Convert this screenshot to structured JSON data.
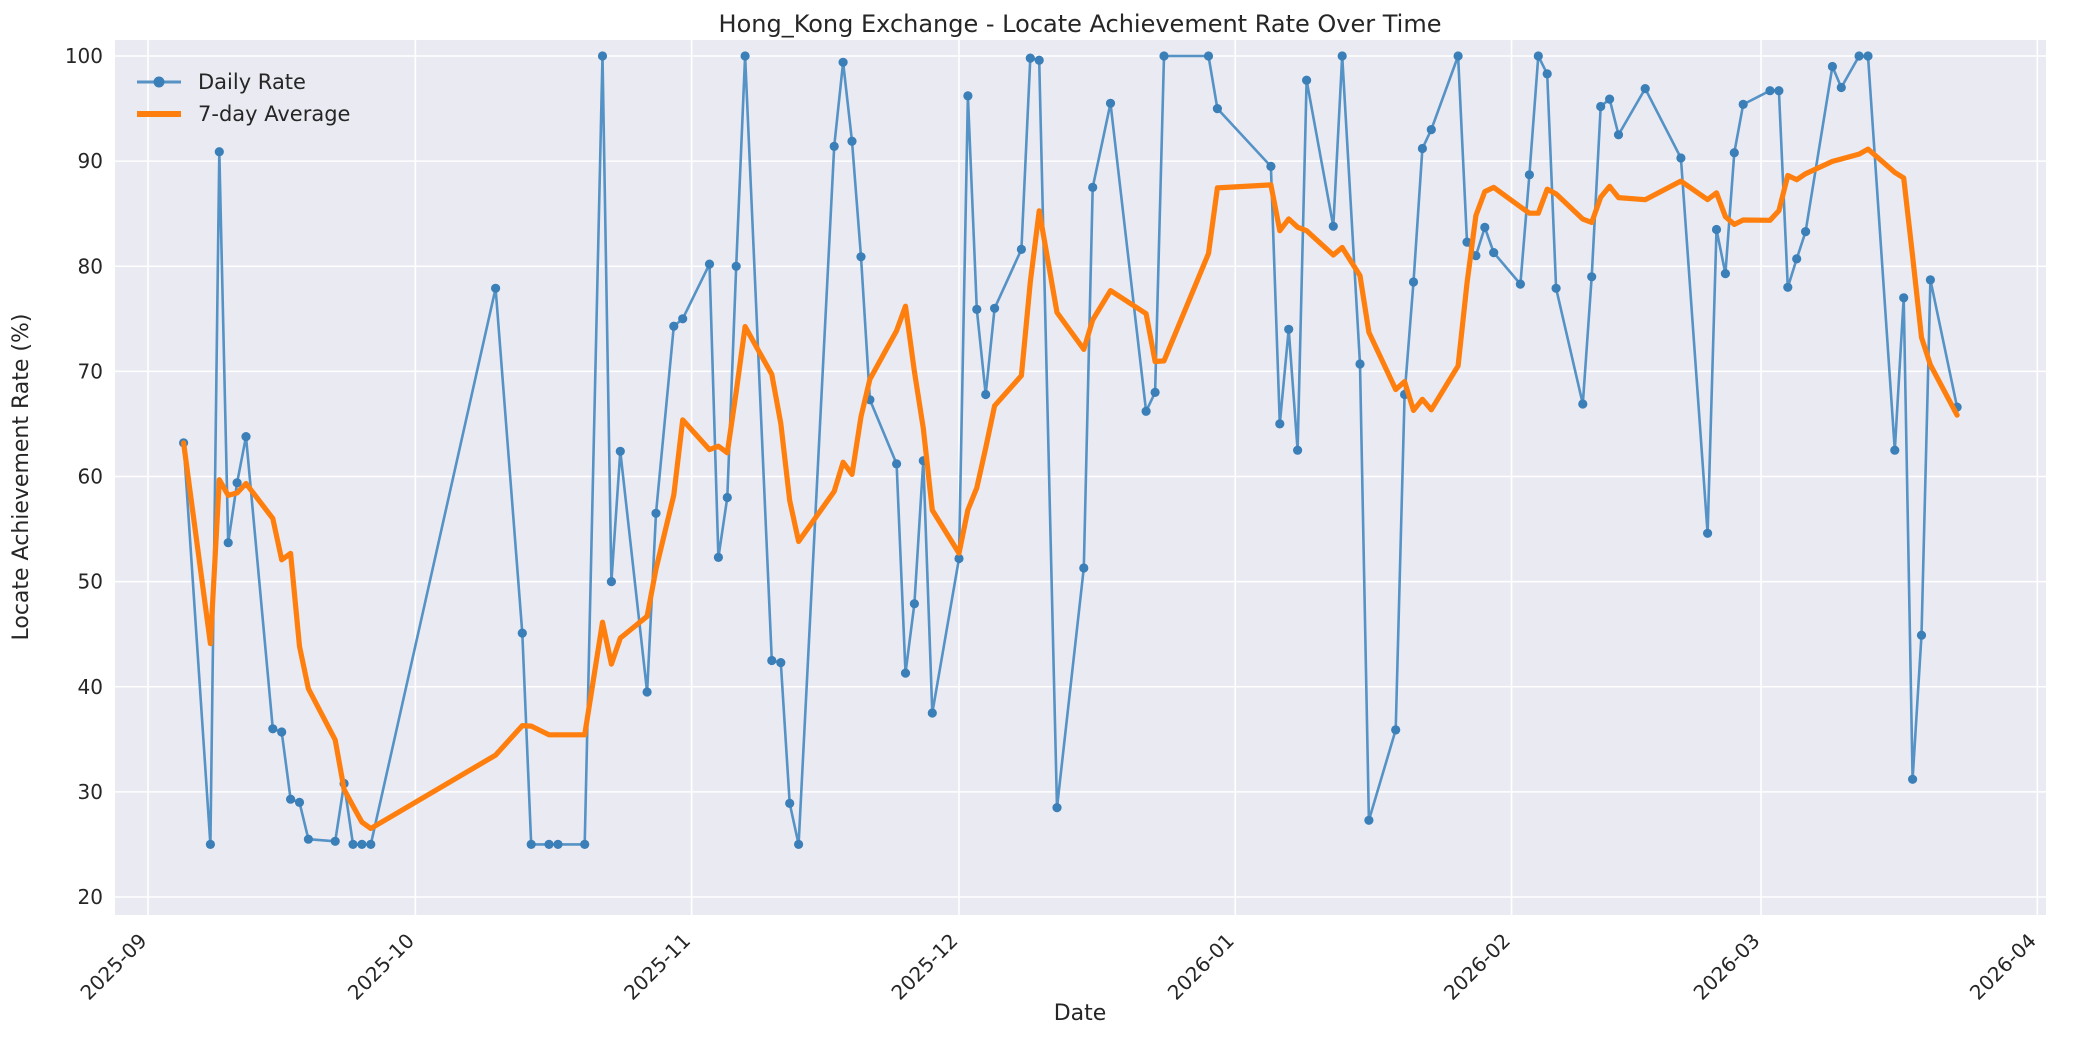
{
  "title": "Hong_Kong Exchange - Locate Achievement Rate Over Time",
  "axes": {
    "xlabel": "Date",
    "ylabel": "Locate Achievement Rate (%)"
  },
  "legend": {
    "daily_label": "Daily Rate",
    "average_label": "7-day Average"
  },
  "colors": {
    "plot_background": "#eaeaf2",
    "grid": "#ffffff",
    "daily_line": "#5592c5",
    "daily_marker": "#3a7fb8",
    "average_line": "#ff7f0e",
    "text": "#262626"
  },
  "chart_data": {
    "type": "line",
    "title": "Hong_Kong Exchange - Locate Achievement Rate Over Time",
    "xlabel": "Date",
    "ylabel": "Locate Achievement Rate (%)",
    "ylim": [
      20,
      100
    ],
    "grid": true,
    "legend_position": "upper-left",
    "y_ticks": [
      20,
      30,
      40,
      50,
      60,
      70,
      80,
      90,
      100
    ],
    "x_ticks": [
      {
        "date": "2025-09-01",
        "label": "2025-09"
      },
      {
        "date": "2025-10-01",
        "label": "2025-10"
      },
      {
        "date": "2025-11-01",
        "label": "2025-11"
      },
      {
        "date": "2025-12-01",
        "label": "2025-12"
      },
      {
        "date": "2026-01-01",
        "label": "2026-01"
      },
      {
        "date": "2026-02-01",
        "label": "2026-02"
      },
      {
        "date": "2026-03-01",
        "label": "2026-03"
      },
      {
        "date": "2026-04-01",
        "label": "2026-04"
      }
    ],
    "series": [
      {
        "name": "Daily Rate",
        "style": "line-with-markers",
        "points": [
          [
            "2025-09-05",
            63.2
          ],
          [
            "2025-09-08",
            25.0
          ],
          [
            "2025-09-09",
            90.9
          ],
          [
            "2025-09-10",
            53.7
          ],
          [
            "2025-09-11",
            59.4
          ],
          [
            "2025-09-12",
            63.8
          ],
          [
            "2025-09-15",
            36.0
          ],
          [
            "2025-09-16",
            35.7
          ],
          [
            "2025-09-17",
            29.3
          ],
          [
            "2025-09-18",
            29.0
          ],
          [
            "2025-09-19",
            25.5
          ],
          [
            "2025-09-22",
            25.3
          ],
          [
            "2025-09-23",
            30.8
          ],
          [
            "2025-09-24",
            25.0
          ],
          [
            "2025-09-25",
            25.0
          ],
          [
            "2025-09-26",
            25.0
          ],
          [
            "2025-10-10",
            77.9
          ],
          [
            "2025-10-13",
            45.1
          ],
          [
            "2025-10-14",
            25.0
          ],
          [
            "2025-10-16",
            25.0
          ],
          [
            "2025-10-17",
            25.0
          ],
          [
            "2025-10-20",
            25.0
          ],
          [
            "2025-10-22",
            100.0
          ],
          [
            "2025-10-23",
            50.0
          ],
          [
            "2025-10-24",
            62.4
          ],
          [
            "2025-10-27",
            39.5
          ],
          [
            "2025-10-28",
            56.5
          ],
          [
            "2025-10-30",
            74.3
          ],
          [
            "2025-10-31",
            75.0
          ],
          [
            "2025-11-03",
            80.2
          ],
          [
            "2025-11-04",
            52.3
          ],
          [
            "2025-11-05",
            58.0
          ],
          [
            "2025-11-06",
            80.0
          ],
          [
            "2025-11-07",
            100.0
          ],
          [
            "2025-11-10",
            42.5
          ],
          [
            "2025-11-11",
            42.3
          ],
          [
            "2025-11-12",
            28.9
          ],
          [
            "2025-11-13",
            25.0
          ],
          [
            "2025-11-17",
            91.4
          ],
          [
            "2025-11-18",
            99.4
          ],
          [
            "2025-11-19",
            91.9
          ],
          [
            "2025-11-20",
            80.9
          ],
          [
            "2025-11-21",
            67.3
          ],
          [
            "2025-11-24",
            61.2
          ],
          [
            "2025-11-25",
            41.3
          ],
          [
            "2025-11-26",
            47.9
          ],
          [
            "2025-11-27",
            61.5
          ],
          [
            "2025-11-28",
            37.5
          ],
          [
            "2025-12-01",
            52.2
          ],
          [
            "2025-12-02",
            96.2
          ],
          [
            "2025-12-03",
            75.9
          ],
          [
            "2025-12-04",
            67.8
          ],
          [
            "2025-12-05",
            76.0
          ],
          [
            "2025-12-08",
            81.6
          ],
          [
            "2025-12-09",
            99.8
          ],
          [
            "2025-12-10",
            99.6
          ],
          [
            "2025-12-12",
            28.5
          ],
          [
            "2025-12-15",
            51.3
          ],
          [
            "2025-12-16",
            87.5
          ],
          [
            "2025-12-18",
            95.5
          ],
          [
            "2025-12-22",
            66.2
          ],
          [
            "2025-12-23",
            68.0
          ],
          [
            "2025-12-24",
            100.0
          ],
          [
            "2025-12-29",
            100.0
          ],
          [
            "2025-12-30",
            95.0
          ],
          [
            "2026-01-05",
            89.5
          ],
          [
            "2026-01-06",
            65.0
          ],
          [
            "2026-01-07",
            74.0
          ],
          [
            "2026-01-08",
            62.5
          ],
          [
            "2026-01-09",
            97.7
          ],
          [
            "2026-01-12",
            83.8
          ],
          [
            "2026-01-13",
            100.0
          ],
          [
            "2026-01-15",
            70.7
          ],
          [
            "2026-01-16",
            27.3
          ],
          [
            "2026-01-19",
            35.9
          ],
          [
            "2026-01-20",
            67.8
          ],
          [
            "2026-01-21",
            78.5
          ],
          [
            "2026-01-22",
            91.2
          ],
          [
            "2026-01-23",
            93.0
          ],
          [
            "2026-01-26",
            100.0
          ],
          [
            "2026-01-27",
            82.3
          ],
          [
            "2026-01-28",
            81.0
          ],
          [
            "2026-01-29",
            83.7
          ],
          [
            "2026-01-30",
            81.3
          ],
          [
            "2026-02-02",
            78.3
          ],
          [
            "2026-02-03",
            88.7
          ],
          [
            "2026-02-04",
            100.0
          ],
          [
            "2026-02-05",
            98.3
          ],
          [
            "2026-02-06",
            77.9
          ],
          [
            "2026-02-09",
            66.9
          ],
          [
            "2026-02-10",
            79.0
          ],
          [
            "2026-02-11",
            95.2
          ],
          [
            "2026-02-12",
            95.9
          ],
          [
            "2026-02-13",
            92.5
          ],
          [
            "2026-02-16",
            96.9
          ],
          [
            "2026-02-20",
            90.3
          ],
          [
            "2026-02-23",
            54.6
          ],
          [
            "2026-02-24",
            83.5
          ],
          [
            "2026-02-25",
            79.3
          ],
          [
            "2026-02-26",
            90.8
          ],
          [
            "2026-02-27",
            95.4
          ],
          [
            "2026-03-02",
            96.7
          ],
          [
            "2026-03-03",
            96.7
          ],
          [
            "2026-03-04",
            78.0
          ],
          [
            "2026-03-05",
            80.7
          ],
          [
            "2026-03-06",
            83.3
          ],
          [
            "2026-03-09",
            99.0
          ],
          [
            "2026-03-10",
            97.0
          ],
          [
            "2026-03-12",
            100.0
          ],
          [
            "2026-03-13",
            100.0
          ],
          [
            "2026-03-16",
            62.5
          ],
          [
            "2026-03-17",
            77.0
          ],
          [
            "2026-03-18",
            31.2
          ],
          [
            "2026-03-19",
            44.9
          ],
          [
            "2026-03-20",
            78.7
          ],
          [
            "2026-03-23",
            66.6
          ]
        ]
      },
      {
        "name": "7-day Average",
        "style": "thick-line",
        "derived_from": "Daily Rate",
        "derivation": {
          "method": "rolling_mean",
          "window": 7,
          "min_periods": 1
        }
      }
    ]
  }
}
